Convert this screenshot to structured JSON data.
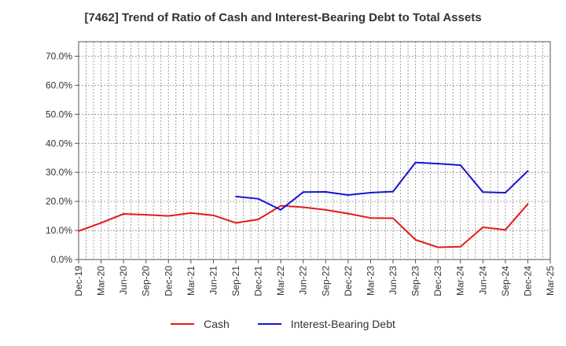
{
  "chart_data": {
    "type": "line",
    "title": "[7462]  Trend of Ratio of Cash and Interest-Bearing Debt to Total Assets",
    "xlabel": "",
    "ylabel": "",
    "categories": [
      "Dec-19",
      "Mar-20",
      "Jun-20",
      "Sep-20",
      "Dec-20",
      "Mar-21",
      "Jun-21",
      "Sep-21",
      "Dec-21",
      "Mar-22",
      "Jun-22",
      "Sep-22",
      "Dec-22",
      "Mar-23",
      "Jun-23",
      "Sep-23",
      "Dec-23",
      "Mar-24",
      "Jun-24",
      "Sep-24",
      "Dec-24",
      "Mar-25"
    ],
    "ylim": [
      0,
      75
    ],
    "yticks": [
      0,
      10,
      20,
      30,
      40,
      50,
      60,
      70
    ],
    "ytick_labels": [
      "0.0%",
      "10.0%",
      "20.0%",
      "30.0%",
      "40.0%",
      "50.0%",
      "60.0%",
      "70.0%"
    ],
    "grid": true,
    "legend_position": "bottom",
    "series": [
      {
        "name": "Cash",
        "color": "#e31a1c",
        "values": [
          9.8,
          12.6,
          15.7,
          15.4,
          15.0,
          16.0,
          15.2,
          12.6,
          13.8,
          18.5,
          18.0,
          17.1,
          15.8,
          14.3,
          14.2,
          6.8,
          4.2,
          4.4,
          11.1,
          10.2,
          19.1,
          null
        ]
      },
      {
        "name": "Interest-Bearing Debt",
        "color": "#1515d6",
        "values": [
          null,
          null,
          null,
          null,
          null,
          null,
          null,
          21.7,
          20.9,
          17.1,
          23.2,
          23.3,
          22.2,
          23.0,
          23.4,
          33.4,
          33.0,
          32.5,
          23.2,
          23.0,
          30.5,
          null
        ]
      }
    ]
  }
}
